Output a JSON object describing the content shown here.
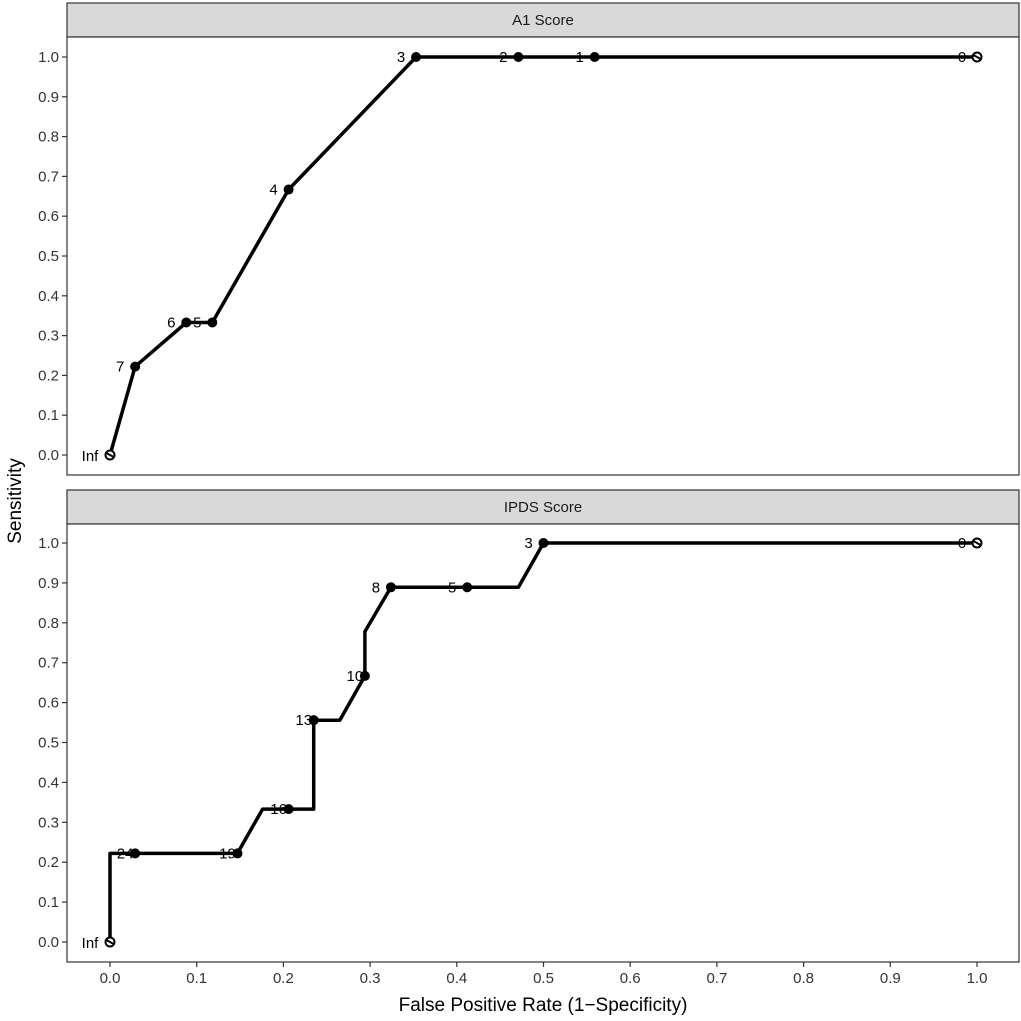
{
  "chart_data": {
    "type": "line",
    "xlabel": "False Positive Rate (1−Specificity)",
    "ylabel": "Sensitivity",
    "xlim": [
      0,
      1
    ],
    "ylim": [
      0,
      1
    ],
    "x_ticks": [
      "0.0",
      "0.1",
      "0.2",
      "0.3",
      "0.4",
      "0.5",
      "0.6",
      "0.7",
      "0.8",
      "0.9",
      "1.0"
    ],
    "y_ticks": [
      "0.0",
      "0.1",
      "0.2",
      "0.3",
      "0.4",
      "0.5",
      "0.6",
      "0.7",
      "0.8",
      "0.9",
      "1.0"
    ],
    "grid": false,
    "colors": {
      "line": "#000000",
      "strip_bg": "#d9d9d9",
      "frame": "#333333"
    },
    "panels": [
      {
        "title": "A1 Score",
        "path": [
          [
            0,
            0
          ],
          [
            0.029,
            0.222
          ],
          [
            0.088,
            0.333
          ],
          [
            0.118,
            0.333
          ],
          [
            0.206,
            0.667
          ],
          [
            0.353,
            1.0
          ],
          [
            0.471,
            1.0
          ],
          [
            0.559,
            1.0
          ],
          [
            1.0,
            1.0
          ]
        ],
        "points": [
          {
            "x": 0.0,
            "y": 0.0,
            "label": "Inf"
          },
          {
            "x": 0.029,
            "y": 0.222,
            "label": "7"
          },
          {
            "x": 0.088,
            "y": 0.333,
            "label": "6"
          },
          {
            "x": 0.118,
            "y": 0.333,
            "label": "5"
          },
          {
            "x": 0.206,
            "y": 0.667,
            "label": "4"
          },
          {
            "x": 0.353,
            "y": 1.0,
            "label": "3"
          },
          {
            "x": 0.471,
            "y": 1.0,
            "label": "2"
          },
          {
            "x": 0.559,
            "y": 1.0,
            "label": "1"
          },
          {
            "x": 1.0,
            "y": 1.0,
            "label": "0"
          }
        ]
      },
      {
        "title": "IPDS Score",
        "path": [
          [
            0,
            0
          ],
          [
            0,
            0.222
          ],
          [
            0.029,
            0.222
          ],
          [
            0.147,
            0.222
          ],
          [
            0.176,
            0.333
          ],
          [
            0.206,
            0.333
          ],
          [
            0.235,
            0.333
          ],
          [
            0.235,
            0.556
          ],
          [
            0.265,
            0.556
          ],
          [
            0.294,
            0.667
          ],
          [
            0.294,
            0.778
          ],
          [
            0.324,
            0.889
          ],
          [
            0.412,
            0.889
          ],
          [
            0.471,
            0.889
          ],
          [
            0.5,
            1.0
          ],
          [
            1.0,
            1.0
          ]
        ],
        "points": [
          {
            "x": 0.0,
            "y": 0.0,
            "label": "Inf"
          },
          {
            "x": 0.029,
            "y": 0.222,
            "label": "24"
          },
          {
            "x": 0.147,
            "y": 0.222,
            "label": "19"
          },
          {
            "x": 0.206,
            "y": 0.333,
            "label": "16"
          },
          {
            "x": 0.235,
            "y": 0.556,
            "label": "13"
          },
          {
            "x": 0.294,
            "y": 0.667,
            "label": "10"
          },
          {
            "x": 0.324,
            "y": 0.889,
            "label": "8"
          },
          {
            "x": 0.412,
            "y": 0.889,
            "label": "5"
          },
          {
            "x": 0.5,
            "y": 1.0,
            "label": "3"
          },
          {
            "x": 1.0,
            "y": 1.0,
            "label": "0"
          }
        ]
      }
    ]
  }
}
